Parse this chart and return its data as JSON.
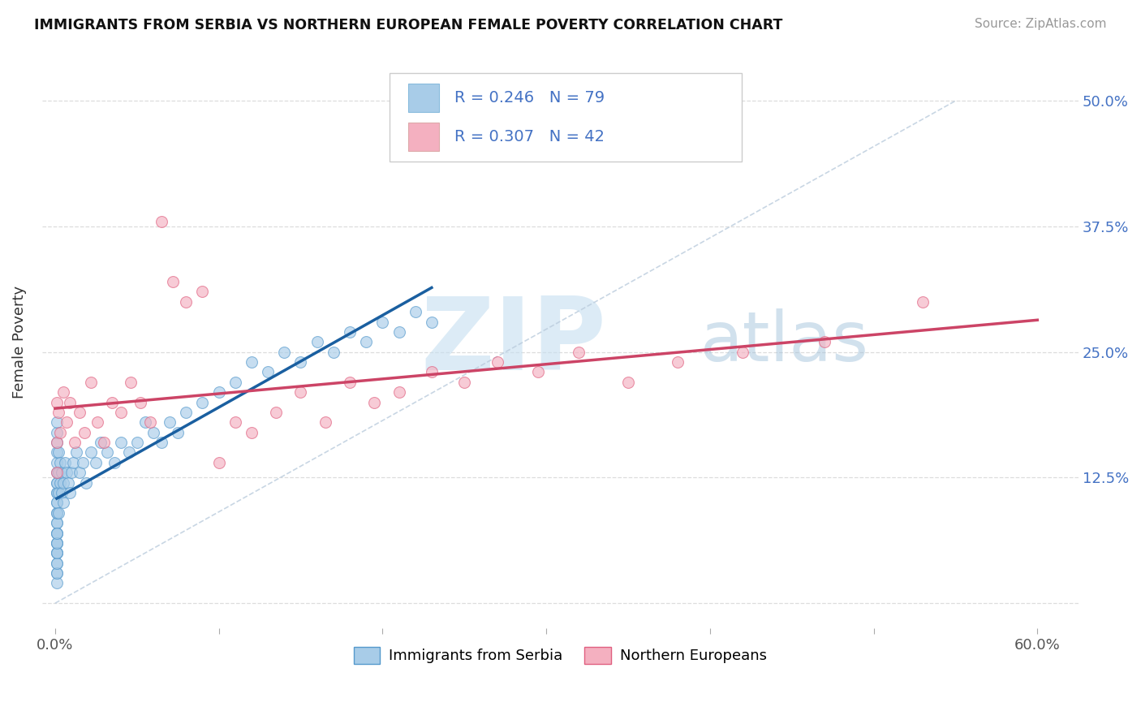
{
  "title": "IMMIGRANTS FROM SERBIA VS NORTHERN EUROPEAN FEMALE POVERTY CORRELATION CHART",
  "source": "Source: ZipAtlas.com",
  "ylabel": "Female Poverty",
  "R1": 0.246,
  "N1": 79,
  "R2": 0.307,
  "N2": 42,
  "color_blue": "#a8cce8",
  "color_blue_edge": "#5599cc",
  "color_pink": "#f4b0c0",
  "color_pink_edge": "#e06080",
  "color_trendline_blue": "#1a5fa0",
  "color_trendline_pink": "#cc4466",
  "color_dashed": "#bbccdd",
  "color_right_axis": "#4472c4",
  "legend1_label": "Immigrants from Serbia",
  "legend2_label": "Northern Europeans",
  "xlim_lo": -0.008,
  "xlim_hi": 0.625,
  "ylim_lo": -0.025,
  "ylim_hi": 0.545,
  "x_tick_vals": [
    0.0,
    0.1,
    0.2,
    0.3,
    0.4,
    0.5,
    0.6
  ],
  "x_tick_labs": [
    "0.0%",
    "",
    "",
    "",
    "",
    "",
    "60.0%"
  ],
  "y_tick_vals": [
    0.0,
    0.125,
    0.25,
    0.375,
    0.5
  ],
  "y_tick_labs_right": [
    "",
    "12.5%",
    "25.0%",
    "37.5%",
    "50.0%"
  ],
  "serbia_x": [
    0.001,
    0.001,
    0.001,
    0.001,
    0.001,
    0.001,
    0.001,
    0.001,
    0.001,
    0.001,
    0.001,
    0.001,
    0.001,
    0.001,
    0.001,
    0.001,
    0.001,
    0.001,
    0.001,
    0.001,
    0.001,
    0.001,
    0.001,
    0.001,
    0.001,
    0.001,
    0.001,
    0.001,
    0.001,
    0.001,
    0.002,
    0.002,
    0.002,
    0.002,
    0.003,
    0.003,
    0.004,
    0.004,
    0.005,
    0.005,
    0.006,
    0.007,
    0.008,
    0.009,
    0.01,
    0.011,
    0.013,
    0.015,
    0.017,
    0.019,
    0.022,
    0.025,
    0.028,
    0.032,
    0.036,
    0.04,
    0.045,
    0.05,
    0.055,
    0.06,
    0.065,
    0.07,
    0.075,
    0.08,
    0.09,
    0.1,
    0.11,
    0.12,
    0.13,
    0.14,
    0.15,
    0.16,
    0.17,
    0.18,
    0.19,
    0.2,
    0.21,
    0.22,
    0.23
  ],
  "serbia_y": [
    0.05,
    0.06,
    0.07,
    0.08,
    0.09,
    0.1,
    0.11,
    0.12,
    0.13,
    0.14,
    0.15,
    0.16,
    0.17,
    0.18,
    0.05,
    0.06,
    0.07,
    0.08,
    0.09,
    0.1,
    0.11,
    0.12,
    0.03,
    0.04,
    0.02,
    0.03,
    0.04,
    0.05,
    0.06,
    0.07,
    0.09,
    0.11,
    0.13,
    0.15,
    0.12,
    0.14,
    0.11,
    0.13,
    0.1,
    0.12,
    0.14,
    0.13,
    0.12,
    0.11,
    0.13,
    0.14,
    0.15,
    0.13,
    0.14,
    0.12,
    0.15,
    0.14,
    0.16,
    0.15,
    0.14,
    0.16,
    0.15,
    0.16,
    0.18,
    0.17,
    0.16,
    0.18,
    0.17,
    0.19,
    0.2,
    0.21,
    0.22,
    0.24,
    0.23,
    0.25,
    0.24,
    0.26,
    0.25,
    0.27,
    0.26,
    0.28,
    0.27,
    0.29,
    0.28
  ],
  "northern_x": [
    0.001,
    0.001,
    0.001,
    0.002,
    0.003,
    0.005,
    0.007,
    0.009,
    0.012,
    0.015,
    0.018,
    0.022,
    0.026,
    0.03,
    0.035,
    0.04,
    0.046,
    0.052,
    0.058,
    0.065,
    0.072,
    0.08,
    0.09,
    0.1,
    0.11,
    0.12,
    0.135,
    0.15,
    0.165,
    0.18,
    0.195,
    0.21,
    0.23,
    0.25,
    0.27,
    0.295,
    0.32,
    0.35,
    0.38,
    0.42,
    0.47,
    0.53
  ],
  "northern_y": [
    0.2,
    0.16,
    0.13,
    0.19,
    0.17,
    0.21,
    0.18,
    0.2,
    0.16,
    0.19,
    0.17,
    0.22,
    0.18,
    0.16,
    0.2,
    0.19,
    0.22,
    0.2,
    0.18,
    0.38,
    0.32,
    0.3,
    0.31,
    0.14,
    0.18,
    0.17,
    0.19,
    0.21,
    0.18,
    0.22,
    0.2,
    0.21,
    0.23,
    0.22,
    0.24,
    0.23,
    0.25,
    0.22,
    0.24,
    0.25,
    0.26,
    0.3
  ]
}
